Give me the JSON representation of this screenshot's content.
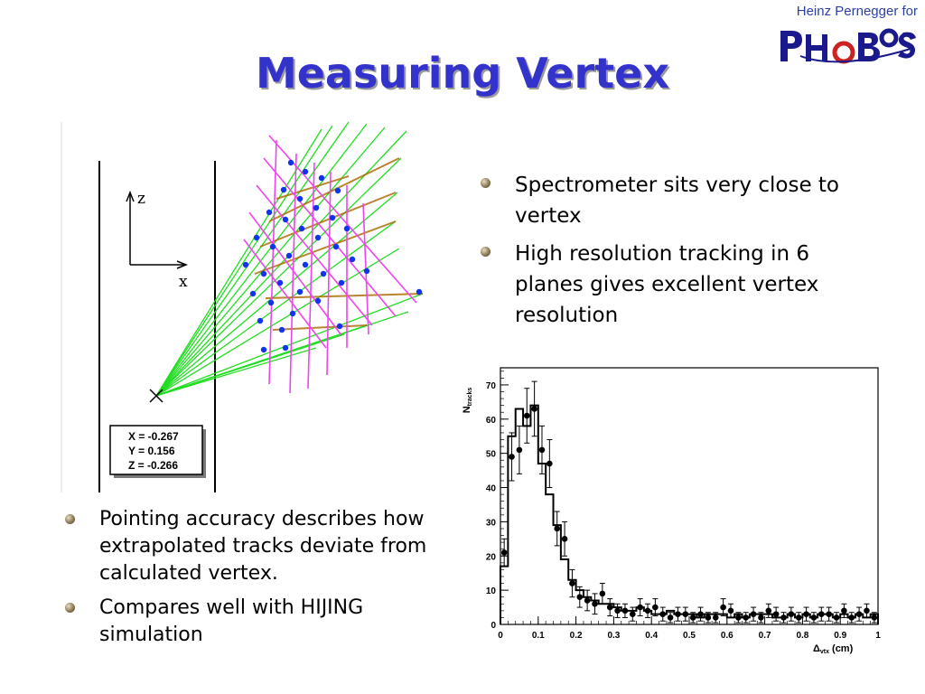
{
  "header": {
    "author": "Heinz Pernegger for",
    "logo_text": "PHOBOS",
    "title": "Measuring Vertex"
  },
  "bullets_right": [
    "Spectrometer sits very close to vertex",
    "High resolution tracking in 6 planes gives excellent vertex resolution"
  ],
  "bullets_left": [
    "Pointing accuracy describes how extrapolated tracks deviate from calculated vertex.",
    "Compares well with HIJING simulation"
  ],
  "diagram": {
    "axis_z": "z",
    "axis_x": "x",
    "vertex_readout": [
      "X = -0.267",
      "Y = 0.156",
      "Z = -0.266"
    ]
  },
  "chart_data": {
    "type": "histogram",
    "ylabel": "N",
    "ylabel_sub": "tracks",
    "xlabel": "Δ",
    "xlabel_sub": "vtx",
    "xlabel_unit": "(cm)",
    "xlim": [
      0,
      1.0
    ],
    "ylim": [
      0,
      75
    ],
    "xticks": [
      0,
      0.1,
      0.2,
      0.3,
      0.4,
      0.5,
      0.6,
      0.7,
      0.8,
      0.9,
      1
    ],
    "xtick_labels": [
      "0",
      "0.1",
      "0.2",
      "0.3",
      "0.4",
      "0.5",
      "0.6",
      "0.7",
      "0.8",
      "0.9",
      "1"
    ],
    "yticks": [
      0,
      10,
      20,
      30,
      40,
      50,
      60,
      70
    ],
    "bin_width": 0.02,
    "simulation_histogram": [
      17,
      55,
      63,
      58,
      64,
      47,
      38,
      29,
      19,
      13,
      10,
      8,
      7,
      6,
      6,
      5,
      4,
      4,
      5,
      4,
      3,
      3,
      4,
      3,
      3,
      3,
      2,
      3,
      3,
      3,
      2,
      3,
      2,
      3,
      3,
      3,
      2,
      2,
      3,
      2,
      3,
      2,
      3,
      3,
      2,
      3,
      2,
      3,
      2,
      3
    ],
    "data_points": {
      "x": [
        0.01,
        0.03,
        0.05,
        0.07,
        0.09,
        0.11,
        0.13,
        0.15,
        0.17,
        0.19,
        0.21,
        0.23,
        0.25,
        0.27,
        0.29,
        0.31,
        0.33,
        0.35,
        0.37,
        0.39,
        0.41,
        0.43,
        0.45,
        0.47,
        0.49,
        0.51,
        0.53,
        0.55,
        0.57,
        0.59,
        0.61,
        0.63,
        0.65,
        0.67,
        0.69,
        0.71,
        0.73,
        0.75,
        0.77,
        0.79,
        0.81,
        0.83,
        0.85,
        0.87,
        0.89,
        0.91,
        0.93,
        0.95,
        0.97,
        0.99
      ],
      "y": [
        21,
        49,
        51,
        61,
        63,
        51,
        47,
        28,
        25,
        12,
        8,
        7,
        6,
        9,
        5,
        4,
        4,
        3,
        5,
        4,
        5,
        3,
        2,
        3,
        3,
        2,
        3,
        2,
        2,
        5,
        4,
        2,
        2,
        3,
        2,
        4,
        3,
        2,
        3,
        2,
        3,
        2,
        3,
        3,
        2,
        4,
        2,
        3,
        4,
        2
      ],
      "err": [
        4,
        7,
        7,
        8,
        8,
        7,
        7,
        5,
        5,
        4,
        3,
        3,
        3,
        3,
        2.5,
        2,
        2,
        2,
        2.5,
        2,
        2.5,
        2,
        1.5,
        2,
        2,
        1.5,
        2,
        1.5,
        1.5,
        2.5,
        2,
        1.5,
        1.5,
        2,
        1.5,
        2,
        2,
        1.5,
        2,
        1.5,
        2,
        1.5,
        2,
        2,
        1.5,
        2,
        1.5,
        2,
        2,
        1.5
      ]
    }
  }
}
